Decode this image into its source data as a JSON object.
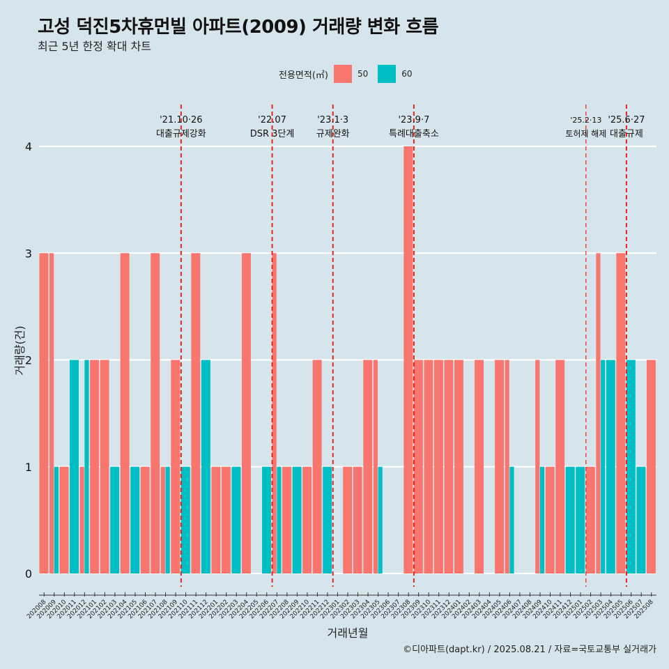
{
  "title": "고성 덕진5차휴먼빌 아파트(2009) 거래량 변화 흐름",
  "subtitle": "최근 5년 한정 확대 차트",
  "legend": {
    "title": "전용면적(㎡)",
    "items": [
      {
        "label": "50",
        "color": "#f8766d"
      },
      {
        "label": "60",
        "color": "#00bfc4"
      }
    ]
  },
  "caption": "©디아파트(dapt.kr) / 2025.08.21 / 자료=국토교통부 실거래가",
  "chart_data": {
    "type": "bar",
    "xlabel": "거래년월",
    "ylabel": "거래량(건)",
    "ylim": [
      0,
      4
    ],
    "yticks": [
      0,
      1,
      2,
      3,
      4
    ],
    "grid": true,
    "legend_position": "top",
    "categories": [
      "202008",
      "202009",
      "202010",
      "202011",
      "202012",
      "202101",
      "202102",
      "202103",
      "202104",
      "202105",
      "202106",
      "202107",
      "202108",
      "202109",
      "202110",
      "202111",
      "202112",
      "202201",
      "202202",
      "202203",
      "202204",
      "202205",
      "202206",
      "202207",
      "202208",
      "202209",
      "202210",
      "202211",
      "202212",
      "202301",
      "202302",
      "202303",
      "202304",
      "202305",
      "202306",
      "202307",
      "202308",
      "202309",
      "202310",
      "202311",
      "202312",
      "202401",
      "202402",
      "202403",
      "202404",
      "202405",
      "202406",
      "202407",
      "202408",
      "202409",
      "202410",
      "202411",
      "202412",
      "202501",
      "202502",
      "202503",
      "202504",
      "202505",
      "202506",
      "202507",
      "202508"
    ],
    "series": [
      {
        "name": "50",
        "color": "#f8766d",
        "values": [
          3,
          3,
          1,
          0,
          1,
          2,
          2,
          0,
          3,
          0,
          1,
          3,
          1,
          2,
          0,
          3,
          0,
          1,
          1,
          0,
          3,
          0,
          0,
          3,
          1,
          0,
          1,
          2,
          0,
          0,
          1,
          1,
          2,
          2,
          0,
          0,
          4,
          2,
          2,
          2,
          2,
          2,
          0,
          2,
          0,
          2,
          2,
          0,
          0,
          2,
          1,
          2,
          0,
          0,
          1,
          3,
          0,
          3,
          0,
          0,
          2
        ]
      },
      {
        "name": "60",
        "color": "#00bfc4",
        "values": [
          0,
          1,
          0,
          2,
          2,
          0,
          0,
          1,
          0,
          1,
          0,
          0,
          1,
          0,
          1,
          0,
          2,
          0,
          0,
          1,
          0,
          0,
          1,
          1,
          0,
          1,
          0,
          0,
          1,
          0,
          0,
          0,
          0,
          1,
          0,
          0,
          0,
          0,
          0,
          0,
          0,
          0,
          0,
          0,
          0,
          0,
          1,
          0,
          0,
          1,
          0,
          0,
          1,
          1,
          0,
          2,
          2,
          0,
          2,
          1,
          0
        ]
      }
    ],
    "events": [
      {
        "x": "202110",
        "date": "'21.10·26",
        "label": "대출규제강화"
      },
      {
        "x": "202207",
        "date": "'22.07",
        "label": "DSR 3단계"
      },
      {
        "x": "202301",
        "date": "'23.1·3",
        "label": "규제완화"
      },
      {
        "x": "202309",
        "date": "'23.9·7",
        "label": "특례대출축소"
      },
      {
        "x": "202502",
        "date": "'25.2·13",
        "label": "토허제 해제"
      },
      {
        "x": "202506",
        "date": "'25.6·27",
        "label": "대출규제"
      }
    ]
  }
}
